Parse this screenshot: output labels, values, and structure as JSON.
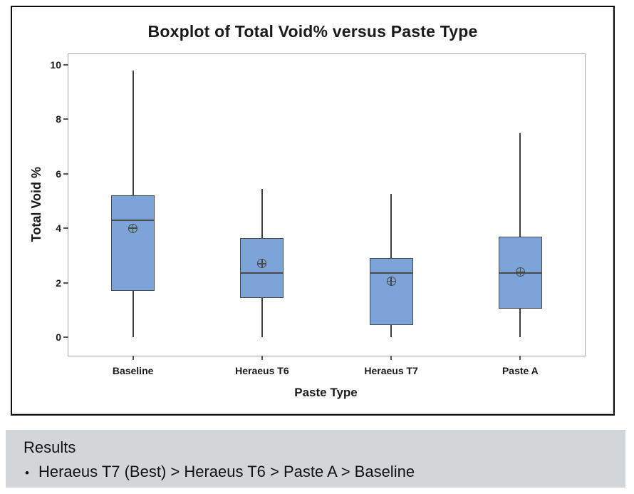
{
  "chart_data": {
    "type": "boxplot",
    "title": "Boxplot of Total Void% versus Paste Type",
    "xlabel": "Paste Type",
    "ylabel": "Total Void %",
    "ylim": [
      0,
      10
    ],
    "yticks": [
      0,
      2,
      4,
      6,
      8,
      10
    ],
    "categories": [
      "Baseline",
      "Heraeus T6",
      "Heraeus T7",
      "Paste A"
    ],
    "series": [
      {
        "name": "Baseline",
        "whisker_low": 0.0,
        "q1": 1.7,
        "median": 4.3,
        "q3": 5.2,
        "whisker_high": 9.8,
        "mean": 4.0
      },
      {
        "name": "Heraeus T6",
        "whisker_low": 0.0,
        "q1": 1.45,
        "median": 2.35,
        "q3": 3.65,
        "whisker_high": 5.45,
        "mean": 2.7
      },
      {
        "name": "Heraeus T7",
        "whisker_low": 0.0,
        "q1": 0.45,
        "median": 2.35,
        "q3": 2.9,
        "whisker_high": 5.25,
        "mean": 2.05
      },
      {
        "name": "Paste A",
        "whisker_low": 0.0,
        "q1": 1.05,
        "median": 2.35,
        "q3": 3.7,
        "whisker_high": 7.5,
        "mean": 2.4
      }
    ],
    "legend": "none",
    "grid": false,
    "colors": {
      "box_fill": "#7ca4d9",
      "box_border": "#4a4a4a",
      "whisker": "#3f3f3f",
      "mean_marker": "#474747",
      "plot_border": "#a3a3a3",
      "card_border": "#0d0d0d"
    }
  },
  "results_panel": {
    "heading": "Results",
    "bullet_glyph": "•",
    "bullet_text": "Heraeus T7 (Best) > Heraeus T6 > Paste A > Baseline",
    "background": "#d2d6d9"
  }
}
